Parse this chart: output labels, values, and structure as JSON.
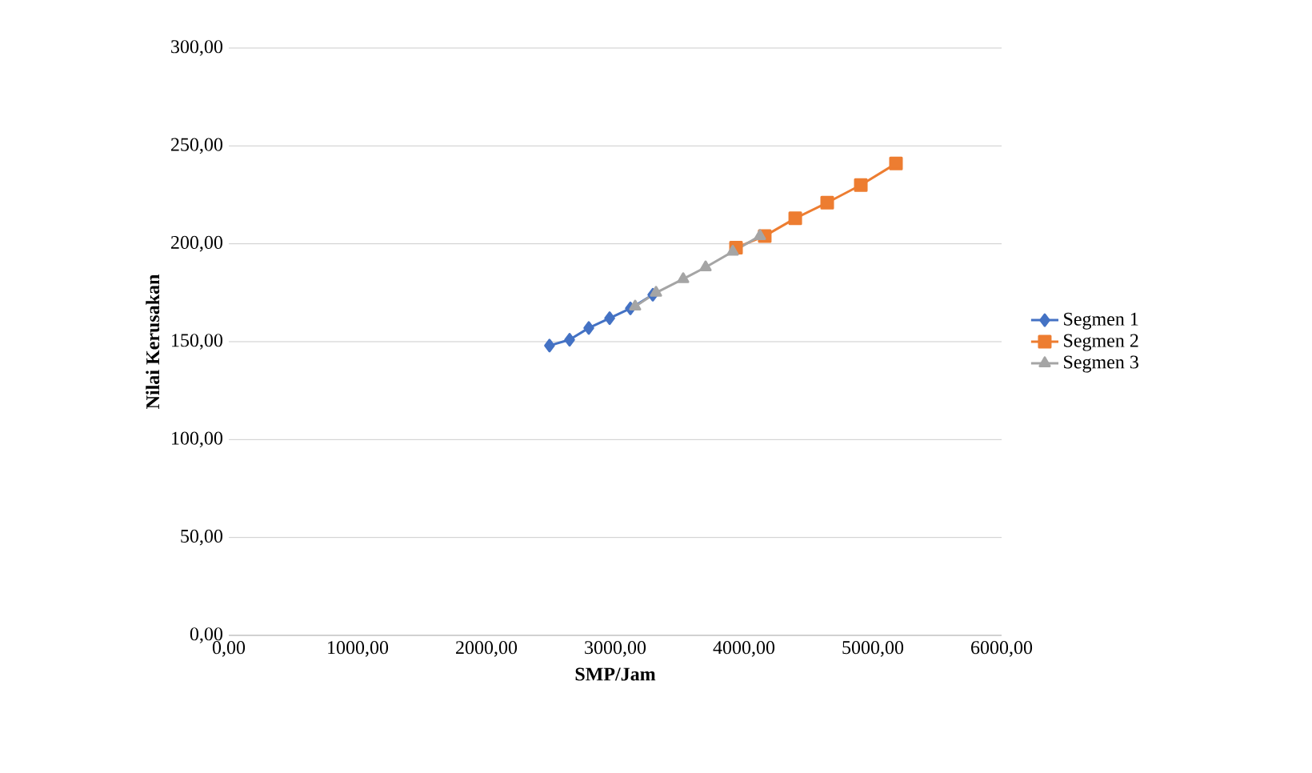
{
  "chart_data": {
    "type": "line",
    "xlabel": "SMP/Jam",
    "ylabel": "Nilai Kerusakan",
    "xlim": [
      0,
      6000
    ],
    "ylim": [
      0,
      300
    ],
    "xticks": [
      {
        "value": 0,
        "label": "0,00"
      },
      {
        "value": 1000,
        "label": "1000,00"
      },
      {
        "value": 2000,
        "label": "2000,00"
      },
      {
        "value": 3000,
        "label": "3000,00"
      },
      {
        "value": 4000,
        "label": "4000,00"
      },
      {
        "value": 5000,
        "label": "5000,00"
      },
      {
        "value": 6000,
        "label": "6000,00"
      }
    ],
    "yticks": [
      {
        "value": 0,
        "label": "0,00"
      },
      {
        "value": 50,
        "label": "50,00"
      },
      {
        "value": 100,
        "label": "100,00"
      },
      {
        "value": 150,
        "label": "150,00"
      },
      {
        "value": 200,
        "label": "200,00"
      },
      {
        "value": 250,
        "label": "250,00"
      },
      {
        "value": 300,
        "label": "300,00"
      }
    ],
    "grid": "y",
    "legend": "right",
    "series": [
      {
        "name": "Segmen 1",
        "color": "#4472c4",
        "marker": "diamond",
        "x": [
          2490,
          2646,
          2795,
          2957,
          3118,
          3292
        ],
        "values": [
          148,
          151,
          157,
          162,
          167,
          174
        ]
      },
      {
        "name": "Segmen 2",
        "color": "#ed7d31",
        "marker": "square",
        "x": [
          3938,
          4161,
          4398,
          4646,
          4907,
          5180
        ],
        "values": [
          198,
          204,
          213,
          221,
          230,
          241
        ]
      },
      {
        "name": "Segmen 3",
        "color": "#a5a5a5",
        "marker": "triangle",
        "x": [
          3155,
          3317,
          3528,
          3702,
          3913,
          4124
        ],
        "values": [
          168,
          175,
          182,
          188,
          196,
          204
        ]
      }
    ]
  }
}
